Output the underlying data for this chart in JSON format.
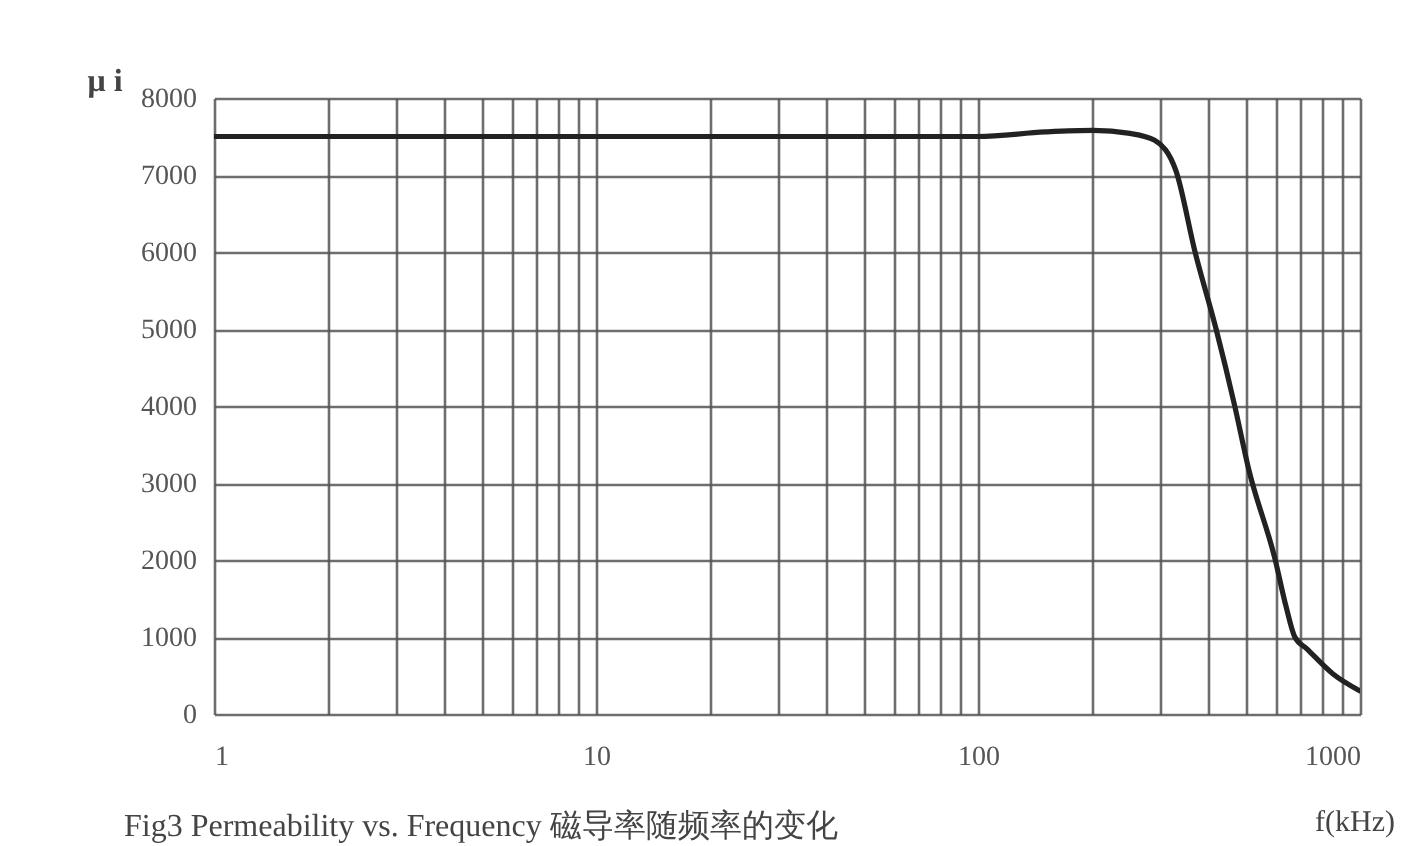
{
  "chart_data": {
    "type": "line",
    "title": "Fig3 Permeability vs. Frequency 磁导率随频率的变化",
    "xlabel": "f(kHz)",
    "ylabel": "μ i",
    "x": [
      1,
      100,
      150,
      200,
      250,
      290,
      330,
      370,
      420,
      470,
      510,
      600,
      640,
      675,
      725,
      850,
      1000
    ],
    "series": [
      {
        "color": "#222222",
        "values": [
          7500,
          7500,
          7560,
          7580,
          7540,
          7450,
          7050,
          6000,
          5000,
          4000,
          3200,
          2000,
          1400,
          1000,
          850,
          520,
          300
        ]
      }
    ],
    "xlim": [
      1,
      1000
    ],
    "ylim": [
      0,
      8000
    ],
    "xticks": [
      1,
      {
        "value": 2,
        "label": null
      },
      {
        "value": 3,
        "label": null
      },
      {
        "value": 4,
        "label": null
      },
      {
        "value": 5,
        "label": null
      },
      {
        "value": 6,
        "label": null
      },
      {
        "value": 7,
        "label": null
      },
      {
        "value": 8,
        "label": null
      },
      {
        "value": 9,
        "label": null
      },
      10,
      {
        "value": 20,
        "label": null
      },
      {
        "value": 30,
        "label": null
      },
      {
        "value": 40,
        "label": null
      },
      {
        "value": 50,
        "label": null
      },
      {
        "value": 60,
        "label": null
      },
      {
        "value": 70,
        "label": null
      },
      {
        "value": 80,
        "label": null
      },
      {
        "value": 90,
        "label": null
      },
      100,
      {
        "value": 200,
        "label": null
      },
      {
        "value": 300,
        "label": null
      },
      {
        "value": 400,
        "label": null
      },
      {
        "value": 500,
        "label": null
      },
      {
        "value": 600,
        "label": null
      },
      {
        "value": 700,
        "label": null
      },
      {
        "value": 800,
        "label": null
      },
      {
        "value": 900,
        "label": null
      },
      1000
    ],
    "yticks": [
      0,
      1000,
      2000,
      3000,
      4000,
      5000,
      6000,
      7000,
      8000
    ],
    "log": "x",
    "grid": true,
    "line_style": "solid"
  }
}
